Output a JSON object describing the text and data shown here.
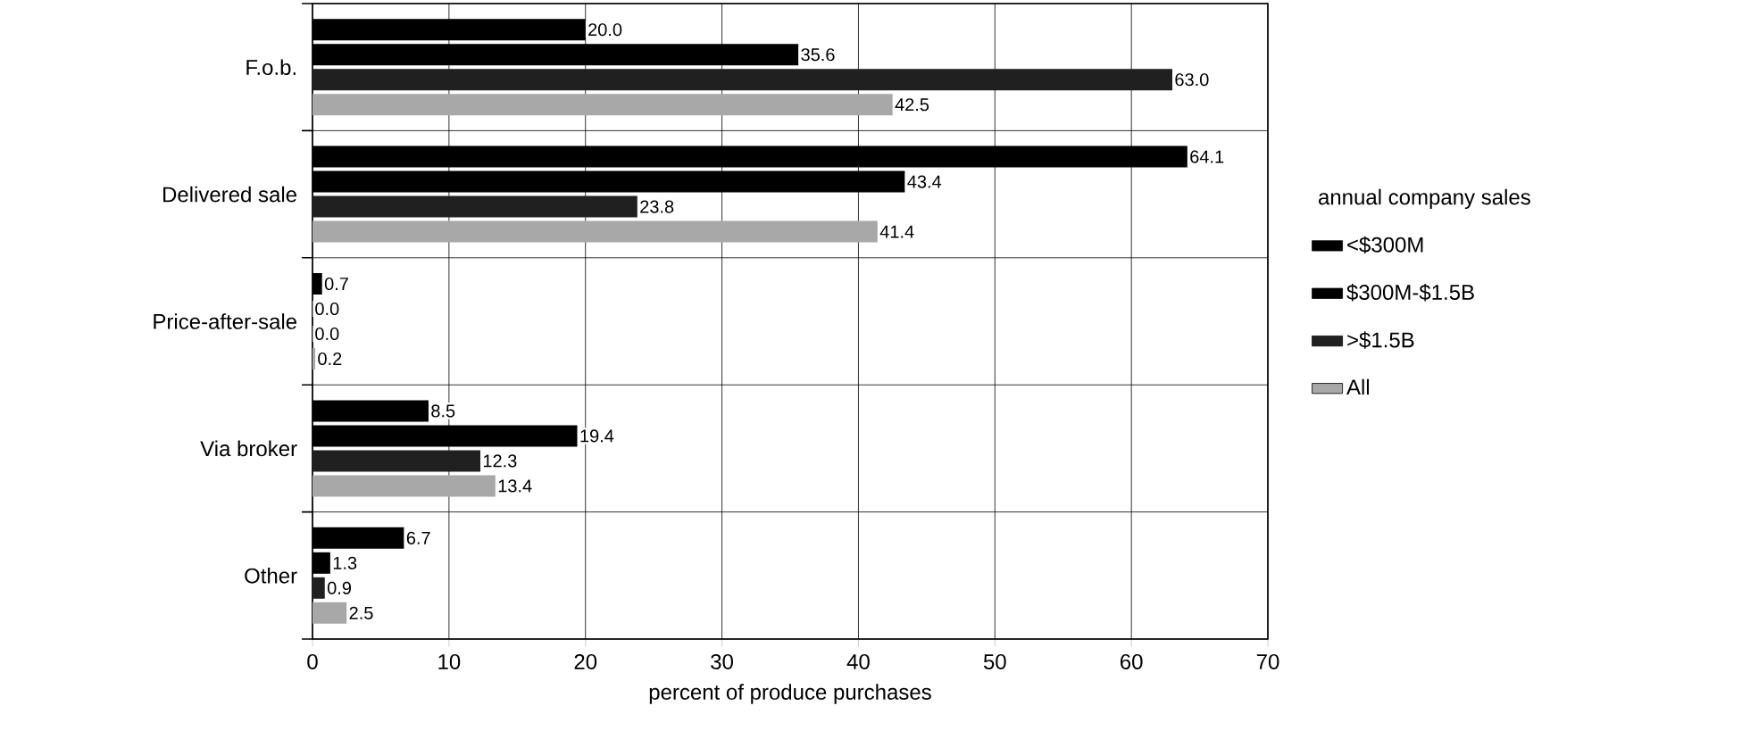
{
  "chart_data": {
    "type": "bar",
    "orientation": "horizontal",
    "xlabel": "percent of produce purchases",
    "legend_title": "annual company sales",
    "categories": [
      "F.o.b.",
      "Delivered sale",
      "Price-after-sale",
      "Via broker",
      "Other"
    ],
    "series": [
      {
        "name": "<$300M",
        "color": "#000000",
        "values": [
          20.0,
          64.1,
          0.7,
          8.5,
          6.7
        ],
        "value_labels": [
          "20.0",
          "64.1",
          "0.7",
          "8.5",
          "6.7"
        ]
      },
      {
        "name": "$300M-$1.5B",
        "color": "#000000",
        "values": [
          35.6,
          43.4,
          0.0,
          19.4,
          1.3
        ],
        "value_labels": [
          "35.6",
          "43.4",
          "0.0",
          "19.4",
          "1.3"
        ]
      },
      {
        "name": ">$1.5B",
        "color": "#202020",
        "values": [
          63.0,
          23.8,
          0.0,
          12.3,
          0.9
        ],
        "value_labels": [
          "63.0",
          "23.8",
          "0.0",
          "12.3",
          "0.9"
        ]
      },
      {
        "name": "All",
        "color": "#a8a8a8",
        "values": [
          42.5,
          41.4,
          0.2,
          13.4,
          2.5
        ],
        "value_labels": [
          "42.5",
          "41.4",
          "0.2",
          "13.4",
          "2.5"
        ]
      }
    ],
    "xlim": [
      0,
      70
    ],
    "xticks": [
      0,
      10,
      20,
      30,
      40,
      50,
      60,
      70
    ],
    "grid": true,
    "legend": "right"
  }
}
